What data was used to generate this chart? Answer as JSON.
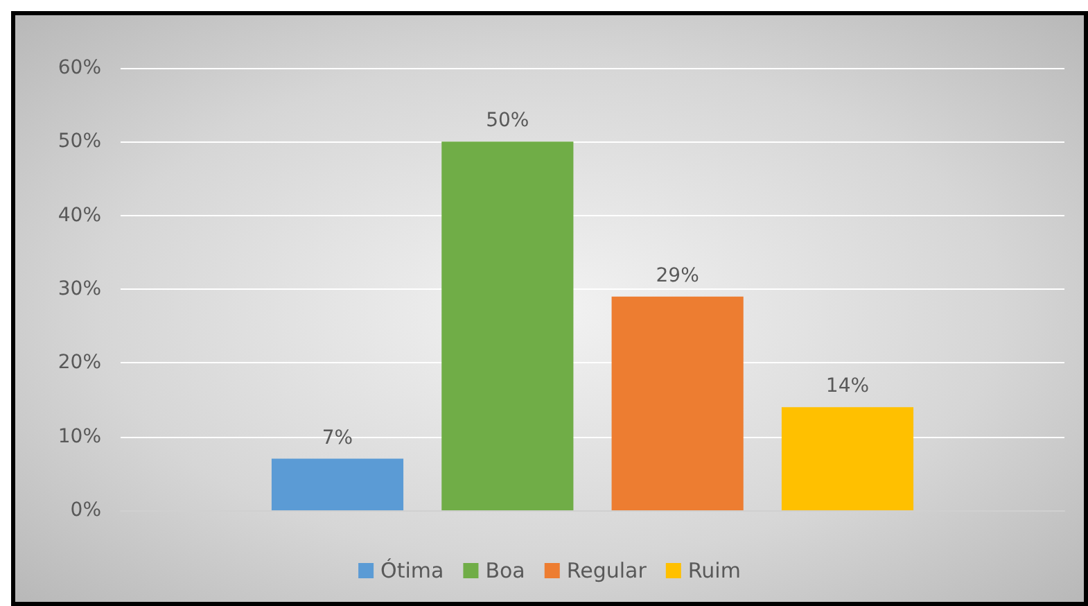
{
  "chart_data": {
    "type": "bar",
    "categories": [
      null
    ],
    "series": [
      {
        "name": "Ótima",
        "color": "#5b9bd5",
        "values": [
          7
        ],
        "value_labels": [
          "7%"
        ]
      },
      {
        "name": "Boa",
        "color": "#70ad47",
        "values": [
          50
        ],
        "value_labels": [
          "50%"
        ]
      },
      {
        "name": "Regular",
        "color": "#ed7d31",
        "values": [
          29
        ],
        "value_labels": [
          "29%"
        ]
      },
      {
        "name": "Ruim",
        "color": "#ffc000",
        "values": [
          14
        ],
        "value_labels": [
          "14%"
        ]
      }
    ],
    "ylim": [
      0,
      60
    ],
    "yticks": [
      {
        "value": 0,
        "label": "0%"
      },
      {
        "value": 10,
        "label": "10%"
      },
      {
        "value": 20,
        "label": "20%"
      },
      {
        "value": 30,
        "label": "30%"
      },
      {
        "value": 40,
        "label": "40%"
      },
      {
        "value": 50,
        "label": "50%"
      },
      {
        "value": 60,
        "label": "60%"
      }
    ],
    "grid": "y",
    "legend": "bottom"
  }
}
